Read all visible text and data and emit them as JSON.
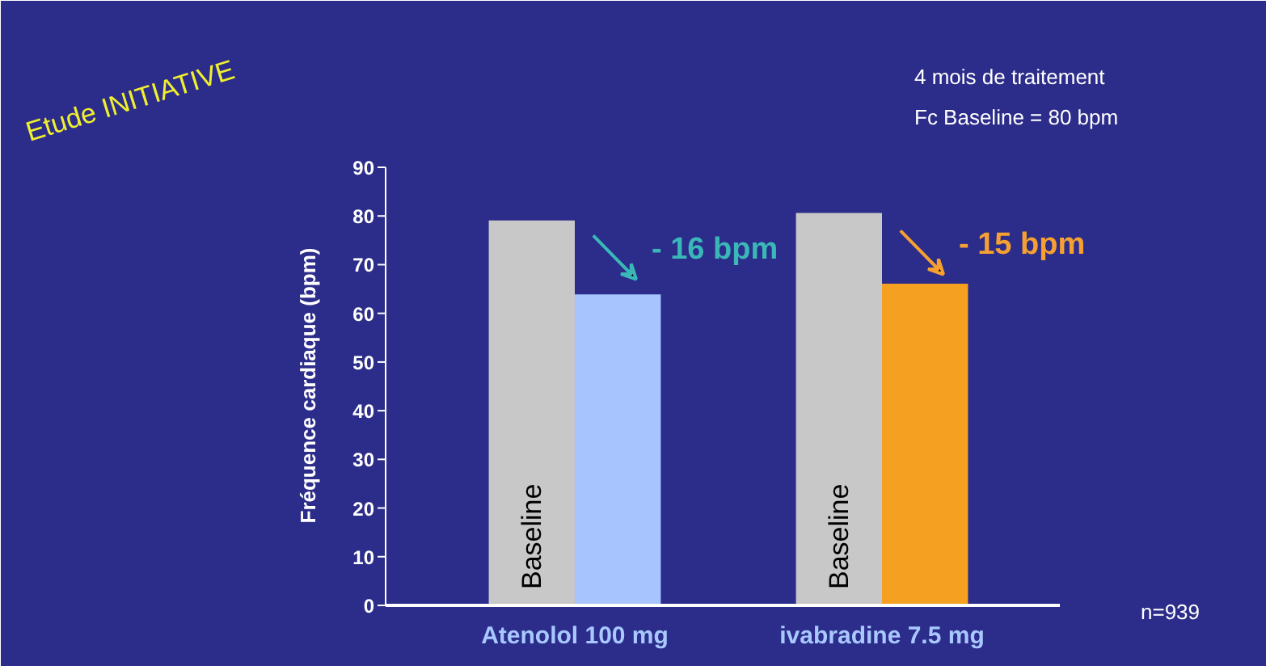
{
  "chart_data": {
    "type": "bar",
    "ylabel": "Fréquence cardiaque (bpm)",
    "categories": [
      "Atenolol 100 mg",
      "ivabradine 7.5 mg"
    ],
    "series": [
      {
        "name": "Baseline",
        "color": "#c8c8c8",
        "values": [
          79.1,
          80.6
        ]
      },
      {
        "colors": [
          "#a8c4ff",
          "#f5a020"
        ],
        "values": [
          63.9,
          66.1
        ]
      }
    ],
    "ylim": [
      0,
      90
    ],
    "yticks": [
      0,
      10,
      20,
      30,
      40,
      50,
      60,
      70,
      80,
      90
    ],
    "grid": false,
    "annotations": [
      {
        "text": "- 16 bpm",
        "x": "Atenolol 100 mg",
        "y": 73
      },
      {
        "text": "- 15 bpm",
        "x": "ivabradine 7.5 mg",
        "y": 74
      },
      "Etude INITIATIVE",
      "4 mois de traitement",
      "Fc Baseline = 80 bpm",
      "n=939"
    ]
  }
}
